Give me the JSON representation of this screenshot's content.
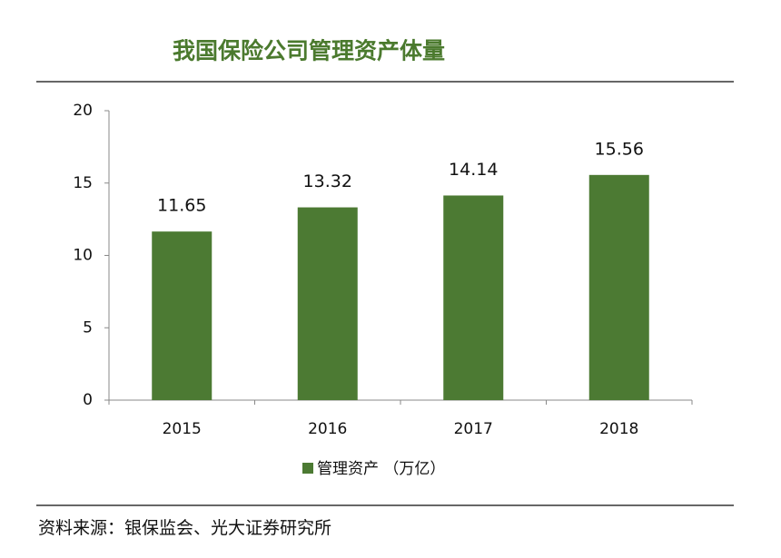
{
  "chart_data": {
    "type": "bar",
    "title": "我国保险公司管理资产体量",
    "categories": [
      "2015",
      "2016",
      "2017",
      "2018"
    ],
    "series": [
      {
        "name": "管理资产 （万亿）",
        "color": "#4c7a33",
        "values": [
          11.65,
          13.32,
          14.14,
          15.56
        ]
      }
    ],
    "ylim": [
      0,
      20
    ],
    "yticks": [
      0,
      5,
      10,
      15,
      20
    ],
    "grid": false,
    "data_labels": true,
    "source": "资料来源：银保监会、光大证券研究所"
  }
}
